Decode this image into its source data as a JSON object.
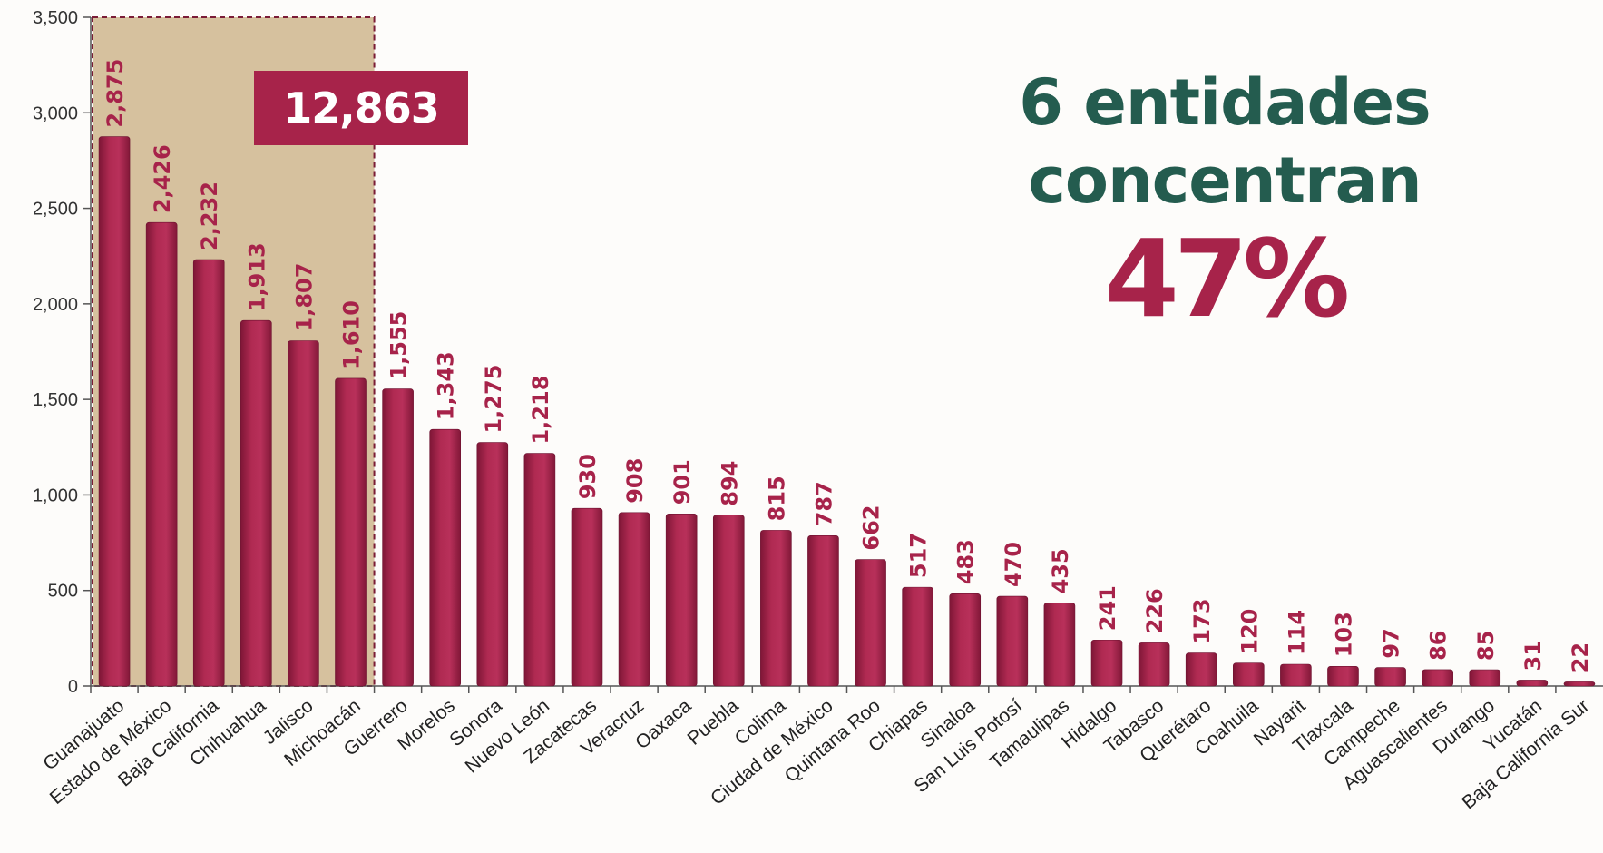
{
  "headline": {
    "line1": "6 entidades",
    "line2": "concentran",
    "percent": "47%"
  },
  "callout": {
    "total": "12,863"
  },
  "colors": {
    "bar": "#a7234a",
    "highlight": "#d6c19e",
    "headline_green": "#245c4f",
    "dashed_border": "#7a1c36"
  },
  "chart_data": {
    "type": "bar",
    "title": "",
    "xlabel": "",
    "ylabel": "",
    "ylim": [
      0,
      3500
    ],
    "yticks": [
      0,
      500,
      1000,
      1500,
      2000,
      2500,
      3000,
      3500
    ],
    "ytick_labels": [
      "0",
      "500",
      "1,000",
      "1,500",
      "2,000",
      "2,500",
      "3,000",
      "3,500"
    ],
    "highlight_count": 6,
    "categories": [
      "Guanajuato",
      "Estado de México",
      "Baja California",
      "Chihuahua",
      "Jalisco",
      "Michoacán",
      "Guerrero",
      "Morelos",
      "Sonora",
      "Nuevo León",
      "Zacatecas",
      "Veracruz",
      "Oaxaca",
      "Puebla",
      "Colima",
      "Ciudad de México",
      "Quintana Roo",
      "Chiapas",
      "Sinaloa",
      "San Luis Potosí",
      "Tamaulipas",
      "Hidalgo",
      "Tabasco",
      "Querétaro",
      "Coahuila",
      "Nayarit",
      "Tlaxcala",
      "Campeche",
      "Aguascalientes",
      "Durango",
      "Yucatán",
      "Baja California Sur"
    ],
    "values": [
      2875,
      2426,
      2232,
      1913,
      1807,
      1610,
      1555,
      1343,
      1275,
      1218,
      930,
      908,
      901,
      894,
      815,
      787,
      662,
      517,
      483,
      470,
      435,
      241,
      226,
      173,
      120,
      114,
      103,
      97,
      86,
      85,
      31,
      22
    ],
    "value_labels": [
      "2,875",
      "2,426",
      "2,232",
      "1,913",
      "1,807",
      "1,610",
      "1,555",
      "1,343",
      "1,275",
      "1,218",
      "930",
      "908",
      "901",
      "894",
      "815",
      "787",
      "662",
      "517",
      "483",
      "470",
      "435",
      "241",
      "226",
      "173",
      "120",
      "114",
      "103",
      "97",
      "86",
      "85",
      "31",
      "22"
    ]
  }
}
